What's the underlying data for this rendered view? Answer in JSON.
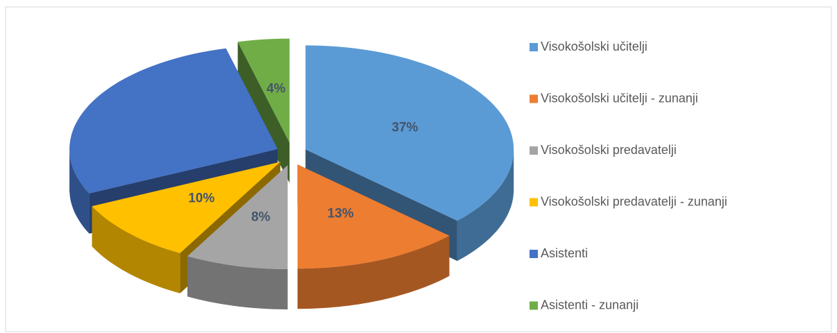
{
  "chart_data": {
    "type": "pie3d",
    "categories": [
      "Visokošolski učitelji",
      "Visokošolski učitelji - zunanji",
      "Visokošolski predavatelji",
      "Visokošolski predavatelji - zunanji",
      "Asistenti",
      "Asistenti - zunanji"
    ],
    "values": [
      37,
      13,
      8,
      10,
      28,
      4
    ],
    "value_labels": [
      "37%",
      "13%",
      "8%",
      "10%",
      null,
      "4%"
    ],
    "colors": [
      "#5b9bd5",
      "#ed7d31",
      "#a5a5a5",
      "#ffc000",
      "#4472c4",
      "#70ad47"
    ],
    "legend": "right"
  }
}
